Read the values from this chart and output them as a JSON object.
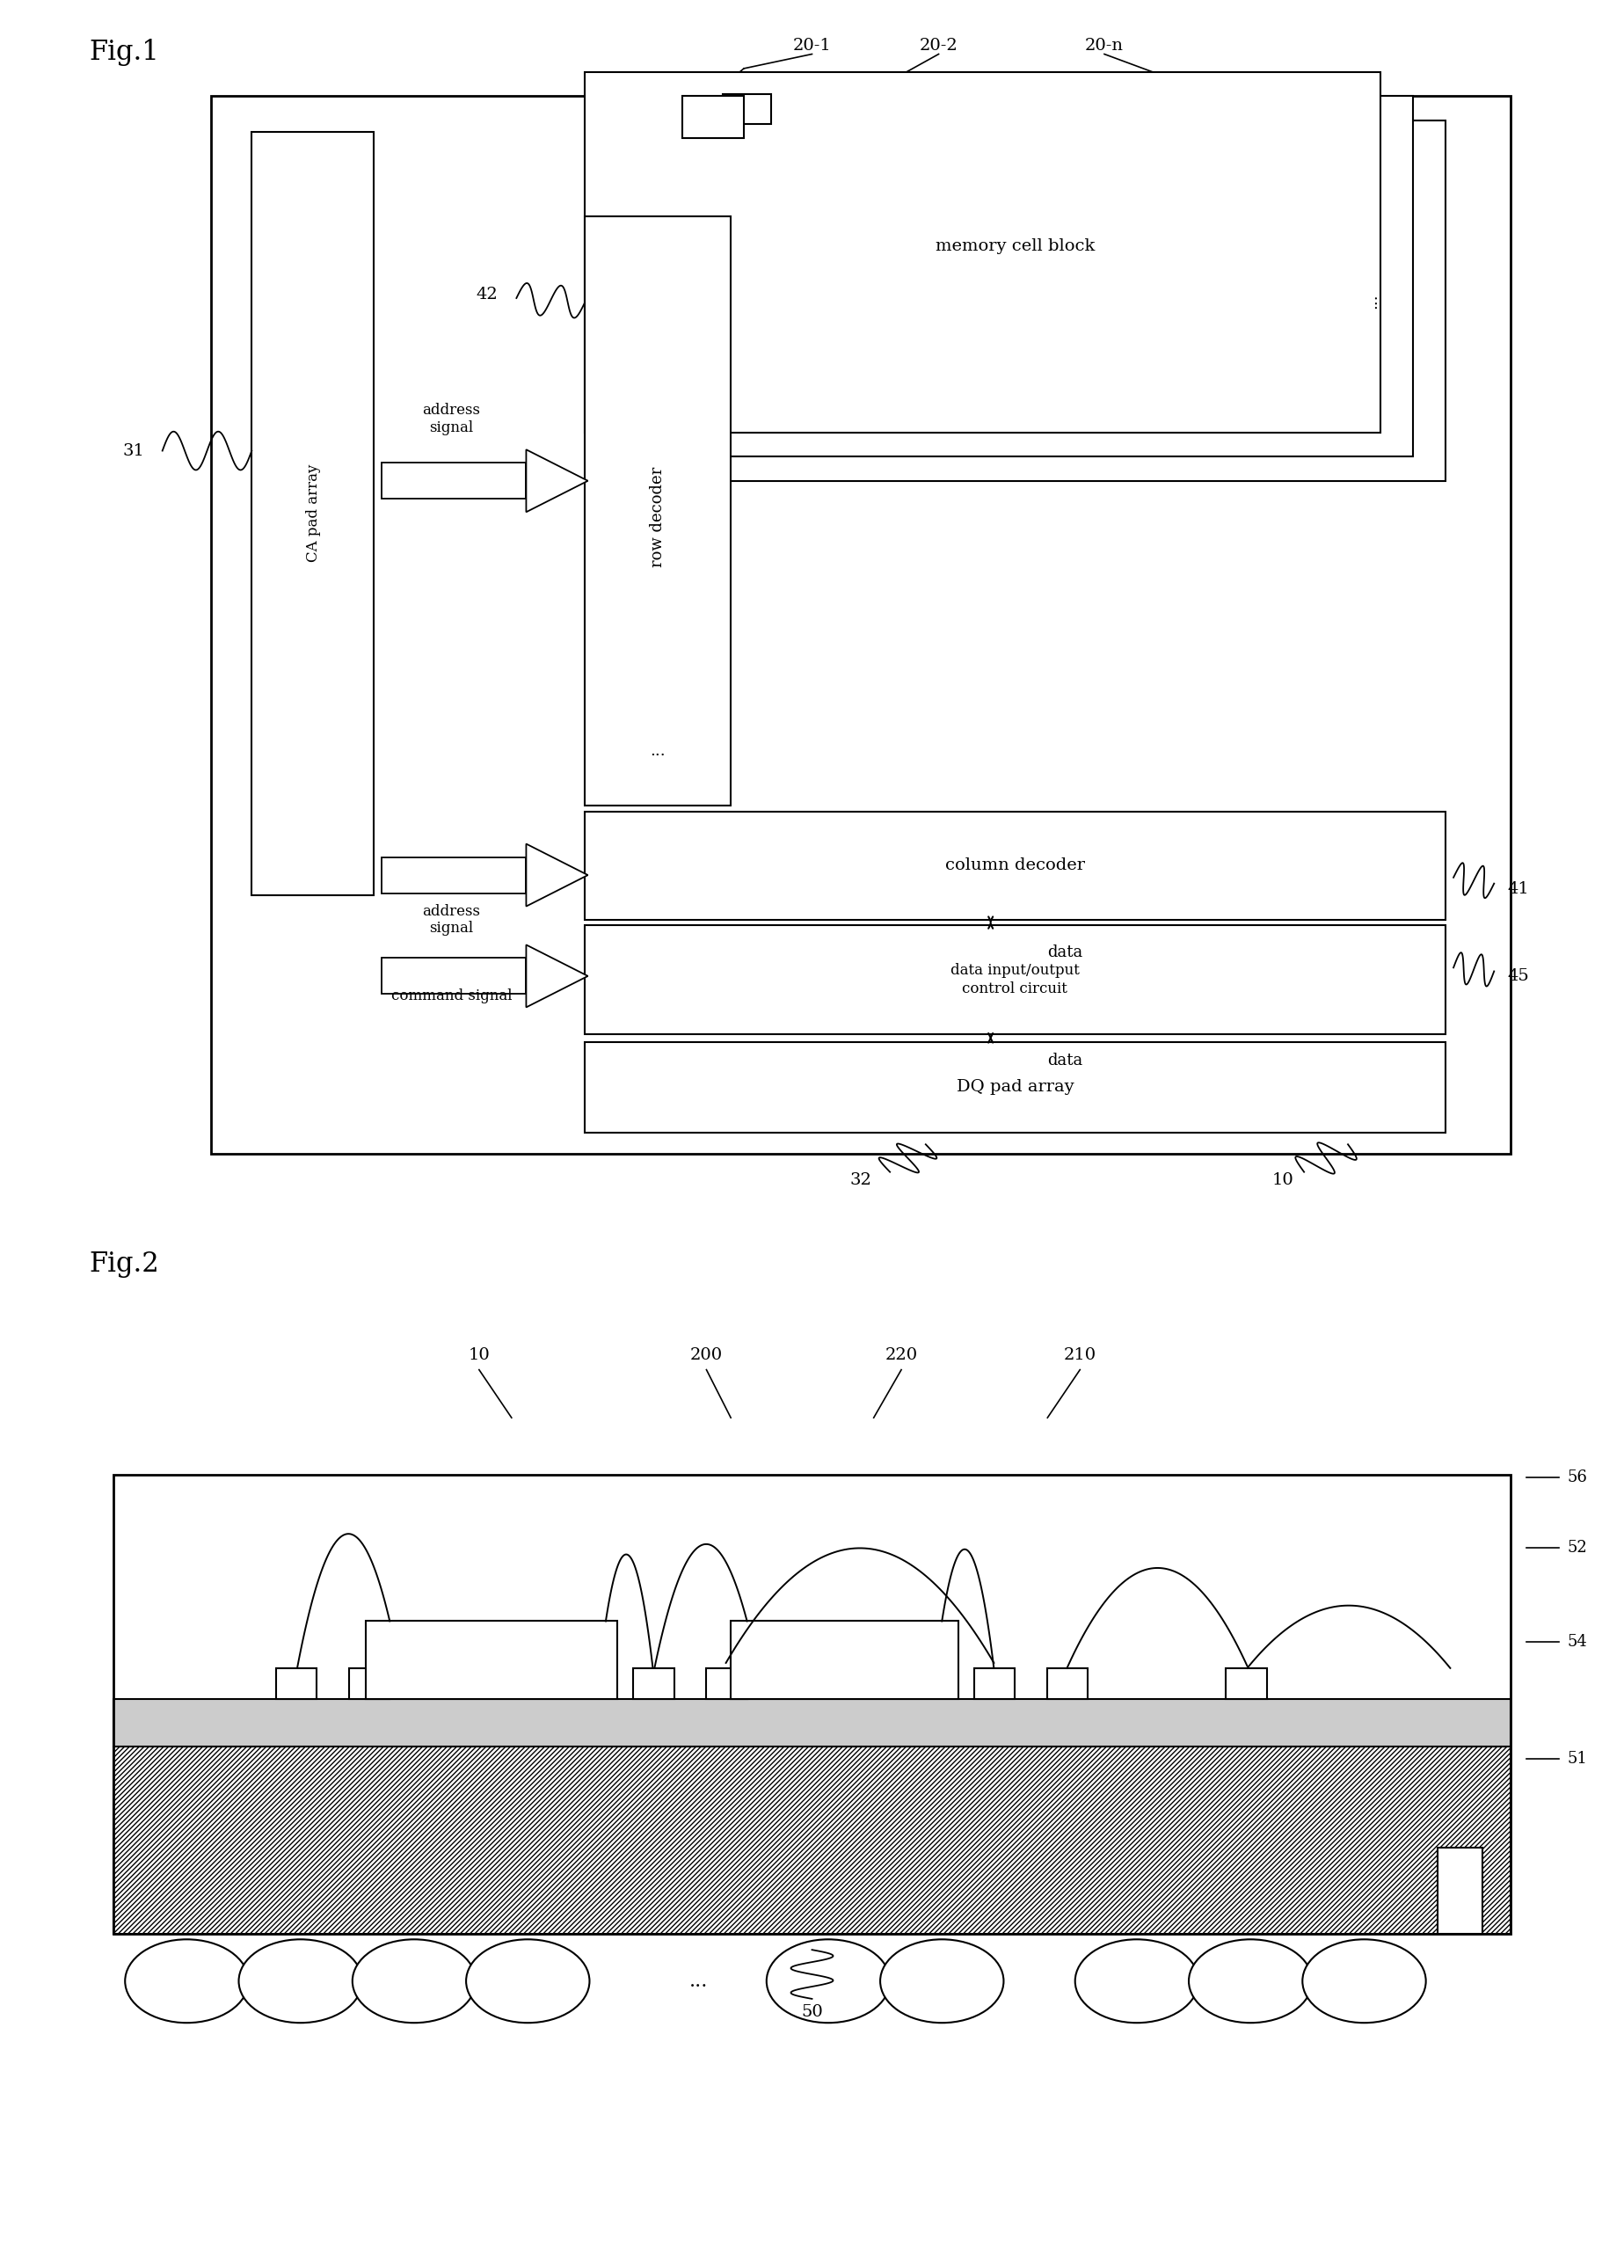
{
  "bg_color": "#ffffff",
  "line_color": "#000000",
  "fig1": {
    "title": "Fig.1",
    "ref_labels": {
      "20_1": "20-1",
      "20_2": "20-2",
      "20_n": "20-n",
      "31": "31",
      "32": "32",
      "41": "41",
      "42": "42",
      "45": "45",
      "10": "10"
    },
    "box_labels": {
      "memory_cell_block": "memory cell block",
      "row_decoder": "row decoder",
      "column_decoder": "column decoder",
      "ca_pad_array": "CA pad array",
      "data_io": "data input/output\ncontrol circuit",
      "dq_pad": "DQ pad array",
      "addr_sig1": "address\nsignal",
      "addr_sig2": "address\nsignal",
      "cmd_sig": "command signal",
      "data1": "data",
      "data2": "data",
      "dots_mem": "...",
      "dots_row": "..."
    }
  },
  "fig2": {
    "title": "Fig.2",
    "ref_labels": {
      "10": "10",
      "200": "200",
      "220": "220",
      "210": "210",
      "50": "50",
      "51": "51",
      "52": "52",
      "54": "54",
      "56": "56"
    }
  }
}
